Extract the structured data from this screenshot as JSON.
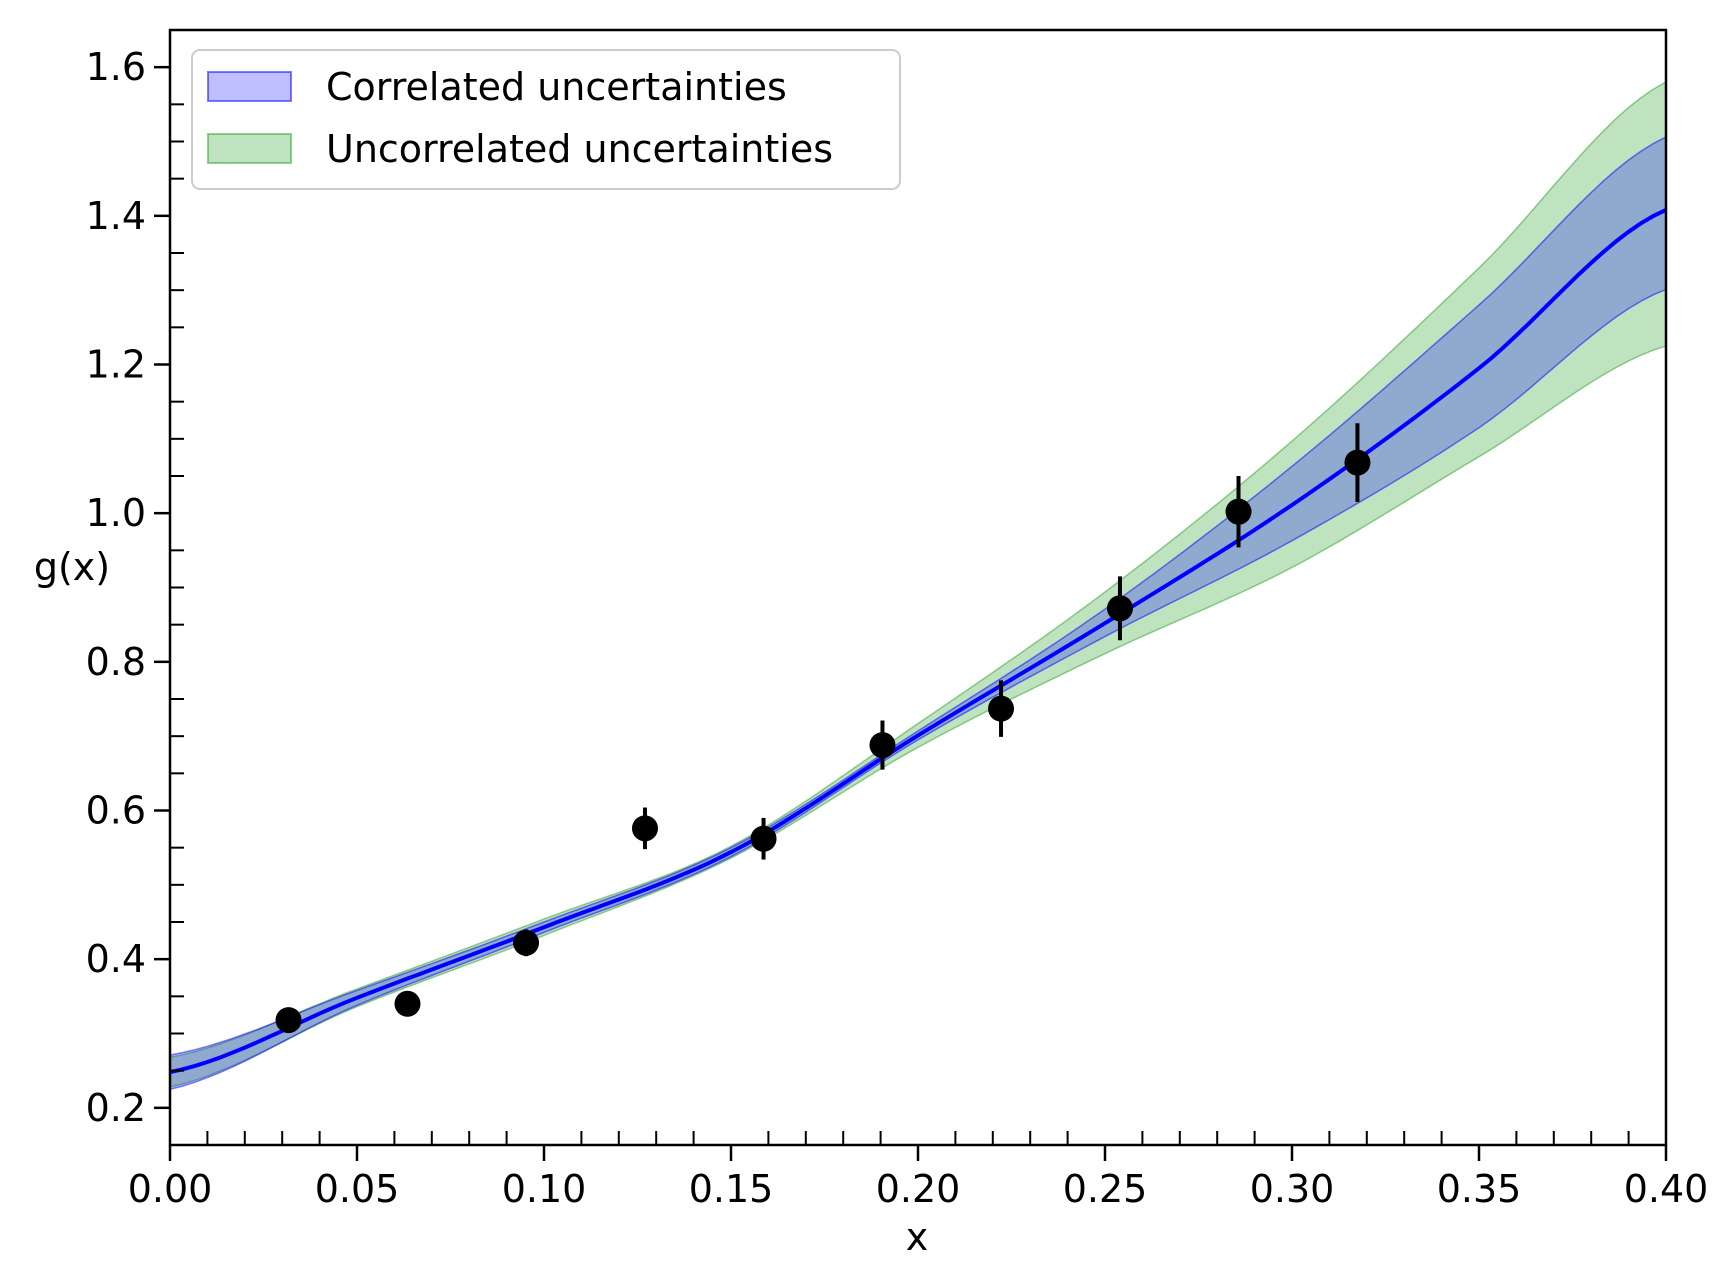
{
  "colors": {
    "fit_line": "#0000ff",
    "correlated_band": "#0000ff",
    "uncorrelated_band": "#2ca02c",
    "points": "#000000"
  },
  "chart_data": {
    "type": "scatter",
    "title": "",
    "xlabel": "x",
    "ylabel": "g(x)",
    "xlim": [
      0.0,
      0.4
    ],
    "ylim": [
      0.15,
      1.65
    ],
    "grid": false,
    "legend_position": "top-left",
    "x_ticks": [
      "0.00",
      "0.05",
      "0.10",
      "0.15",
      "0.20",
      "0.25",
      "0.30",
      "0.35",
      "0.40"
    ],
    "y_ticks": [
      "0.2",
      "0.4",
      "0.6",
      "0.8",
      "1.0",
      "1.2",
      "1.4",
      "1.6"
    ],
    "legend": {
      "correlated": "Correlated uncertainties",
      "uncorrelated": "Uncorrelated uncertainties"
    },
    "series": [
      {
        "name": "data",
        "kind": "errorbar",
        "x": [
          0.0317,
          0.0635,
          0.0952,
          0.127,
          0.1587,
          0.1905,
          0.2222,
          0.254,
          0.2857,
          0.3175
        ],
        "y": [
          0.318,
          0.34,
          0.422,
          0.576,
          0.562,
          0.688,
          0.737,
          0.872,
          1.002,
          1.068
        ],
        "yerr": [
          0.01,
          0.012,
          0.018,
          0.028,
          0.028,
          0.033,
          0.038,
          0.043,
          0.048,
          0.053
        ]
      },
      {
        "name": "fit",
        "kind": "line",
        "x": [
          0.0,
          0.05,
          0.1,
          0.15,
          0.2,
          0.25,
          0.3,
          0.35,
          0.4
        ],
        "y": [
          0.248,
          0.348,
          0.443,
          0.544,
          0.701,
          0.852,
          1.011,
          1.195,
          1.408
        ]
      },
      {
        "name": "Correlated uncertainties",
        "kind": "band",
        "x": [
          0.0,
          0.05,
          0.1,
          0.15,
          0.2,
          0.25,
          0.3,
          0.35,
          0.4
        ],
        "lower": [
          0.225,
          0.338,
          0.436,
          0.538,
          0.695,
          0.834,
          0.963,
          1.115,
          1.301
        ],
        "upper": [
          0.271,
          0.358,
          0.45,
          0.55,
          0.707,
          0.871,
          1.063,
          1.28,
          1.506
        ]
      },
      {
        "name": "Uncorrelated uncertainties",
        "kind": "band",
        "x": [
          0.0,
          0.05,
          0.1,
          0.15,
          0.2,
          0.25,
          0.3,
          0.35,
          0.4
        ],
        "lower": [
          0.228,
          0.336,
          0.432,
          0.536,
          0.685,
          0.811,
          0.927,
          1.076,
          1.225
        ],
        "upper": [
          0.268,
          0.36,
          0.454,
          0.552,
          0.717,
          0.894,
          1.097,
          1.33,
          1.58
        ]
      }
    ]
  }
}
